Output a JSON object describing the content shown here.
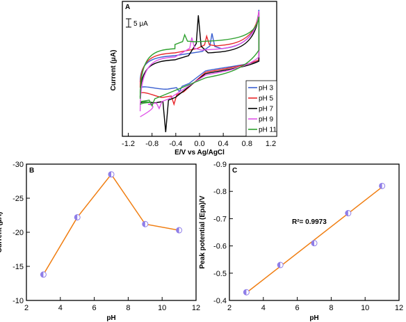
{
  "colors": {
    "pH 3": "#3a5fd0",
    "pH 5": "#e8262a",
    "pH 7": "#000000",
    "pH 9": "#e055e8",
    "pH 11": "#2ea02e",
    "fit_line": "#f07d10",
    "marker": "#8f7ee8"
  },
  "chart_data": [
    {
      "panel": "A",
      "type": "line",
      "xlabel": "E/V vs Ag/AgCl",
      "ylabel": "Current (μA)",
      "scale_bar": "5 μA",
      "xlim": [
        -1.3,
        1.3
      ],
      "xticks": [
        "-1.2",
        "-0.8",
        "-0.4",
        "0.0",
        "0.4",
        "0.8",
        "1.2"
      ],
      "grid": false,
      "legend_position": "bottom-right",
      "series": [
        {
          "name": "pH 3",
          "peak_potential": 0.21
        },
        {
          "name": "pH 5",
          "peak_potential": 0.12
        },
        {
          "name": "pH 7",
          "peak_potential": -0.02
        },
        {
          "name": "pH 9",
          "peak_potential": -0.13
        },
        {
          "name": "pH 11",
          "peak_potential": -0.25
        }
      ]
    },
    {
      "panel": "B",
      "type": "line",
      "xlabel": "pH",
      "ylabel": "Current (μA)",
      "xlim": [
        2,
        12
      ],
      "ylim": [
        -10,
        -30
      ],
      "xticks": [
        "2",
        "4",
        "6",
        "8",
        "10",
        "12"
      ],
      "yticks": [
        "-30",
        "-25",
        "-20",
        "-15",
        "-10"
      ],
      "grid": false,
      "x": [
        3,
        5,
        7,
        9,
        11
      ],
      "y": [
        -13.8,
        -22.2,
        -28.5,
        -21.2,
        -20.3
      ]
    },
    {
      "panel": "C",
      "type": "scatter",
      "xlabel": "pH",
      "ylabel": "Peak potential (Epa)/V",
      "xlim": [
        2,
        12
      ],
      "ylim": [
        -0.4,
        -0.9
      ],
      "xticks": [
        "2",
        "4",
        "6",
        "8",
        "10",
        "12"
      ],
      "yticks": [
        "-0.9",
        "-0.8",
        "-0.7",
        "-0.6",
        "-0.5",
        "-0.4"
      ],
      "grid": false,
      "x": [
        3,
        5,
        7,
        9,
        11
      ],
      "y": [
        -0.43,
        -0.53,
        -0.61,
        -0.72,
        -0.82
      ],
      "annotation": "R²= 0.9973"
    }
  ]
}
